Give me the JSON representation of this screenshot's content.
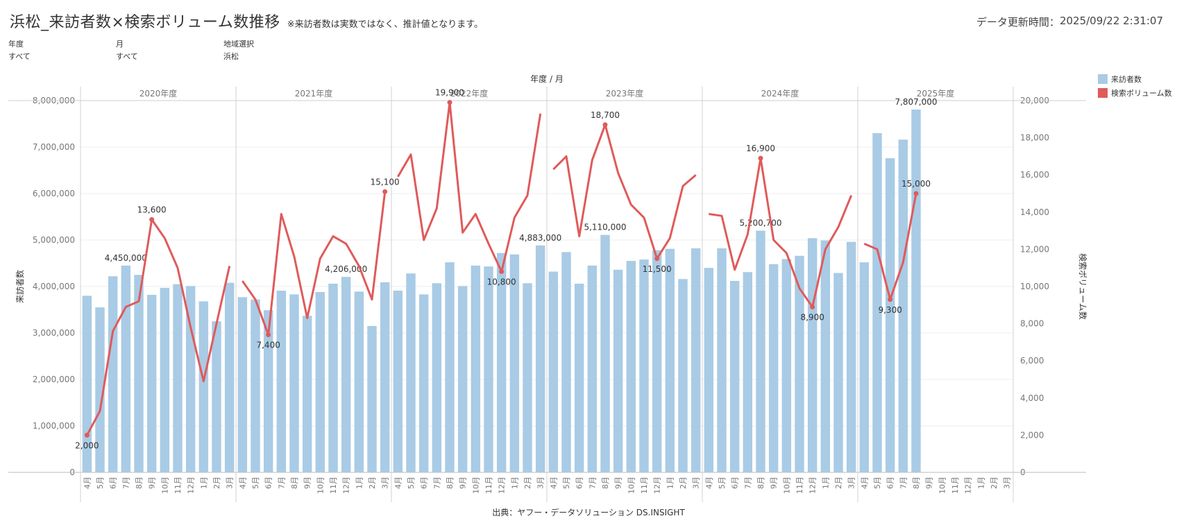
{
  "header": {
    "title": "浜松_来訪者数×検索ボリューム数推移",
    "subtitle": "※来訪者数は実数ではなく、推計値となります。",
    "updated_label": "データ更新時間：",
    "updated_value": "2025/09/22 2:31:07"
  },
  "filters": [
    {
      "label": "年度",
      "value": "すべて"
    },
    {
      "label": "月",
      "value": "すべて"
    },
    {
      "label": "地域選択",
      "value": "浜松"
    }
  ],
  "legend": [
    {
      "label": "来訪者数",
      "color": "#a9cbe5"
    },
    {
      "label": "検索ボリューム数",
      "color": "#e05a5a"
    }
  ],
  "source": "出典：ヤフー・データソリューション DS.INSIGHT",
  "chart_data": {
    "type": "bar+line",
    "column_header": "年度 / 月",
    "ylabel": "来訪者数",
    "y2label": "検索ボリューム数",
    "ylim": [
      0,
      8000000
    ],
    "y2lim": [
      0,
      20000
    ],
    "yticks": [
      "0",
      "1,000,000",
      "2,000,000",
      "3,000,000",
      "4,000,000",
      "5,000,000",
      "6,000,000",
      "7,000,000",
      "8,000,000"
    ],
    "y2ticks": [
      "0",
      "2,000",
      "4,000",
      "6,000",
      "8,000",
      "10,000",
      "12,000",
      "14,000",
      "16,000",
      "18,000",
      "20,000"
    ],
    "months": [
      "4月",
      "5月",
      "6月",
      "7月",
      "8月",
      "9月",
      "10月",
      "11月",
      "12月",
      "1月",
      "2月",
      "3月"
    ],
    "grid": true,
    "legend_position": "top-right",
    "years": [
      {
        "label": "2020年度",
        "visitors": [
          3800000,
          3550000,
          4220000,
          4450000,
          4250000,
          3820000,
          3970000,
          4050000,
          4010000,
          3680000,
          3250000,
          4080000
        ],
        "search": [
          2000,
          3300,
          7600,
          8900,
          9200,
          13600,
          12600,
          11000,
          7800,
          4900,
          8000,
          11100
        ],
        "visitor_labels": [
          "",
          "",
          "",
          "4,450,000",
          "",
          "",
          "",
          "",
          "",
          "",
          "",
          ""
        ],
        "search_labels": [
          "2,000",
          "",
          "",
          "",
          "",
          "13,600",
          "",
          "",
          "",
          "",
          "",
          ""
        ]
      },
      {
        "label": "2021年度",
        "visitors": [
          3770000,
          3720000,
          3490000,
          3910000,
          3830000,
          3370000,
          3880000,
          4060000,
          4206000,
          3890000,
          3150000,
          4090000
        ],
        "search": [
          10300,
          9300,
          7400,
          13900,
          11600,
          8300,
          11500,
          12700,
          12300,
          11100,
          9300,
          15100
        ],
        "visitor_labels": [
          "",
          "",
          "",
          "",
          "",
          "",
          "",
          "",
          "4,206,000",
          "",
          "",
          ""
        ],
        "search_labels": [
          "",
          "",
          "7,400",
          "",
          "",
          "",
          "",
          "",
          "",
          "",
          "",
          "15,100"
        ]
      },
      {
        "label": "2022年度",
        "visitors": [
          3910000,
          4280000,
          3830000,
          4070000,
          4520000,
          4010000,
          4450000,
          4430000,
          4720000,
          4690000,
          4070000,
          4883000
        ],
        "search": [
          15900,
          17100,
          12500,
          14200,
          19900,
          12900,
          13900,
          12300,
          10800,
          13700,
          14900,
          19300
        ],
        "visitor_labels": [
          "",
          "",
          "",
          "",
          "",
          "",
          "",
          "",
          "",
          "",
          "",
          "4,883,000"
        ],
        "search_labels": [
          "",
          "",
          "",
          "",
          "19,900",
          "",
          "",
          "",
          "10,800",
          "",
          "",
          ""
        ]
      },
      {
        "label": "2023年度",
        "visitors": [
          4320000,
          4740000,
          4060000,
          4450000,
          5110000,
          4360000,
          4550000,
          4580000,
          4780000,
          4810000,
          4160000,
          4820000
        ],
        "search": [
          16300,
          17000,
          12700,
          16800,
          18700,
          16100,
          14400,
          13700,
          11500,
          12600,
          15400,
          16000
        ],
        "visitor_labels": [
          "",
          "",
          "",
          "",
          "5,110,000",
          "",
          "",
          "",
          "",
          "",
          "",
          ""
        ],
        "search_labels": [
          "",
          "",
          "",
          "",
          "18,700",
          "",
          "",
          "",
          "11,500",
          "",
          "",
          ""
        ]
      },
      {
        "label": "2024年度",
        "visitors": [
          4400000,
          4820000,
          4120000,
          4310000,
          5200700,
          4480000,
          4590000,
          4660000,
          5040000,
          4990000,
          4290000,
          4960000
        ],
        "search": [
          13900,
          13800,
          10900,
          12800,
          16900,
          12500,
          11800,
          9900,
          8900,
          12000,
          13200,
          14900
        ],
        "visitor_labels": [
          "",
          "",
          "",
          "",
          "5,200,700",
          "",
          "",
          "",
          "",
          "",
          "",
          ""
        ],
        "search_labels": [
          "",
          "",
          "",
          "",
          "16,900",
          "",
          "",
          "",
          "8,900",
          "",
          "",
          ""
        ]
      },
      {
        "label": "2025年度",
        "visitors": [
          4520000,
          7300000,
          6760000,
          7160000,
          7807000,
          null,
          null,
          null,
          null,
          null,
          null,
          null
        ],
        "search": [
          12300,
          12000,
          9300,
          11300,
          15000,
          null,
          null,
          null,
          null,
          null,
          null,
          null
        ],
        "visitor_labels": [
          "",
          "",
          "",
          "",
          "7,807,000",
          "",
          "",
          "",
          "",
          "",
          "",
          ""
        ],
        "search_labels": [
          "",
          "",
          "9,300",
          "",
          "15,000",
          "",
          "",
          "",
          "",
          "",
          "",
          ""
        ]
      }
    ]
  }
}
